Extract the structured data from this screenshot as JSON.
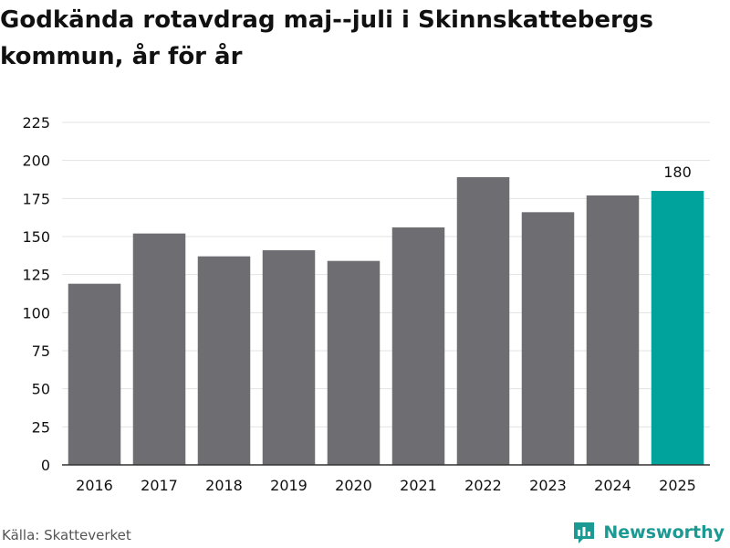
{
  "title": "Godkända rotavdrag maj--juli i Skinnskattebergs kommun, år för år",
  "source": "Källa: Skatteverket",
  "brand": {
    "name": "Newsworthy",
    "icon": "chart-logo-icon",
    "color": "#1a9a92"
  },
  "colors": {
    "bar": "#6d6d72",
    "highlight": "#00a39b",
    "grid": "#e3e3e3",
    "axis": "#333333",
    "text": "#111111"
  },
  "chart_data": {
    "type": "bar",
    "categories": [
      "2016",
      "2017",
      "2018",
      "2019",
      "2020",
      "2021",
      "2022",
      "2023",
      "2024",
      "2025"
    ],
    "values": [
      119,
      152,
      137,
      141,
      134,
      156,
      189,
      166,
      177,
      180
    ],
    "highlight_index": 9,
    "data_labels": {
      "9": "180"
    },
    "ylim": [
      0,
      225
    ],
    "yticks": [
      0,
      25,
      50,
      75,
      100,
      125,
      150,
      175,
      200,
      225
    ],
    "grid": true,
    "xlabel": "",
    "ylabel": ""
  }
}
